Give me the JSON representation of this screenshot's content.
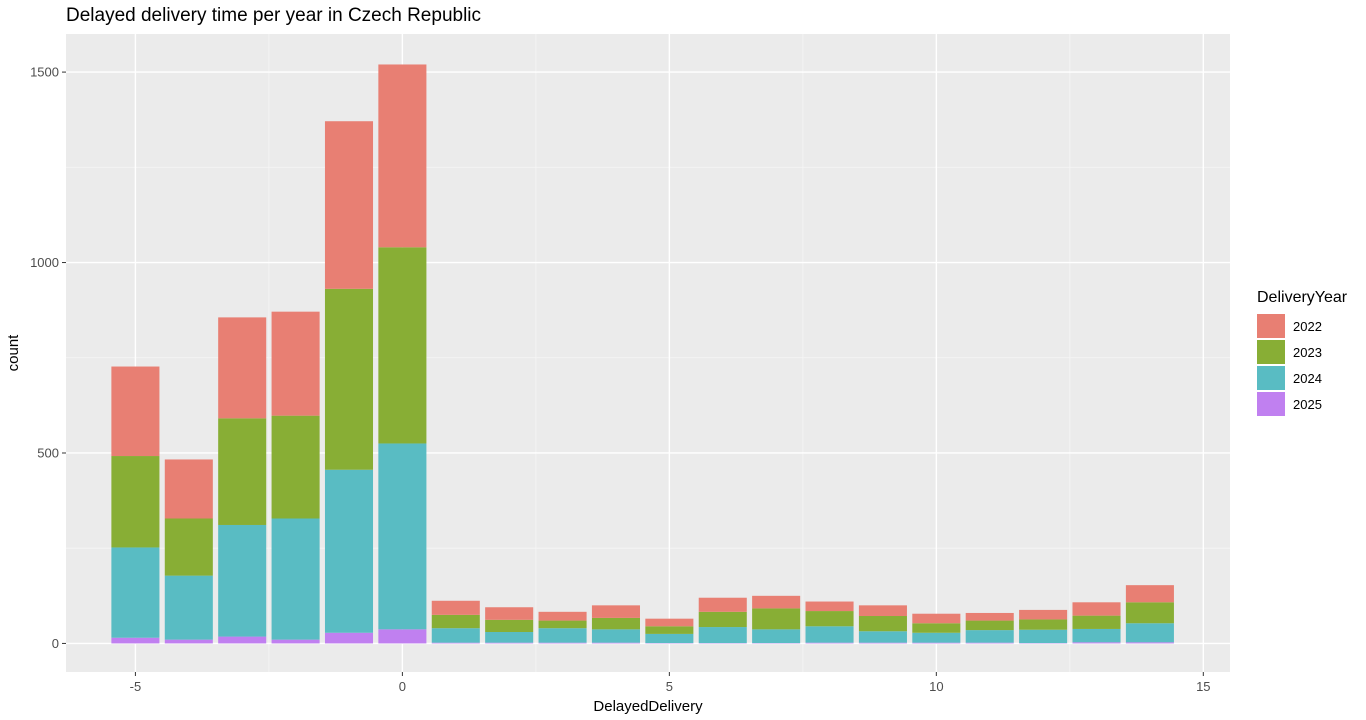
{
  "chart_data": {
    "type": "bar",
    "stacked": true,
    "title": "Delayed delivery time per year in Czech Republic",
    "xlabel": "DelayedDelivery",
    "ylabel": "count",
    "xlim": [
      -6.3,
      15.5
    ],
    "ylim": [
      -75,
      1600
    ],
    "x_ticks": [
      -5,
      0,
      5,
      10,
      15
    ],
    "y_ticks": [
      0,
      500,
      1000,
      1500
    ],
    "x_tick_labels": [
      "-5",
      "0",
      "5",
      "10",
      "15"
    ],
    "y_tick_labels": [
      "0",
      "500",
      "1000",
      "1500"
    ],
    "grid": true,
    "background": "#EBEBEB",
    "legend_position": "right",
    "legend_title": "DeliveryYear",
    "x": [
      -5,
      -4,
      -3,
      -2,
      -1,
      0,
      1,
      2,
      3,
      4,
      5,
      6,
      7,
      8,
      9,
      10,
      11,
      12,
      13,
      14
    ],
    "series": [
      {
        "name": "2022",
        "color": "#E87F73",
        "values": [
          235,
          155,
          265,
          273,
          440,
          480,
          37,
          33,
          23,
          33,
          20,
          37,
          33,
          25,
          28,
          25,
          20,
          25,
          35,
          45
        ]
      },
      {
        "name": "2023",
        "color": "#88AE35",
        "values": [
          240,
          150,
          280,
          270,
          475,
          515,
          35,
          32,
          20,
          30,
          20,
          40,
          55,
          40,
          40,
          25,
          25,
          27,
          35,
          55
        ]
      },
      {
        "name": "2024",
        "color": "#59BCC3",
        "values": [
          237,
          168,
          293,
          318,
          428,
          488,
          38,
          28,
          38,
          35,
          24,
          42,
          36,
          43,
          30,
          26,
          33,
          35,
          35,
          50
        ]
      },
      {
        "name": "2025",
        "color": "#C080F0",
        "values": [
          15,
          10,
          18,
          10,
          28,
          37,
          2,
          2,
          2,
          2,
          1,
          1,
          1,
          2,
          2,
          2,
          2,
          1,
          3,
          3
        ]
      }
    ]
  }
}
